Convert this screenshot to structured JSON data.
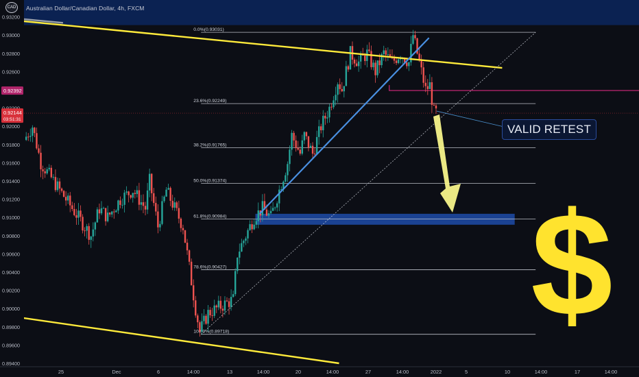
{
  "header": {
    "currency_badge": "CAD",
    "symbol_title": "Australian Dollar/Canadian Dollar, 4h, FXCM"
  },
  "annotations": {
    "valid_retest": "VALID RETEST",
    "dollar_sign": "$"
  },
  "colors": {
    "background": "#0c0e15",
    "bull_candle": "#26a69a",
    "bear_candle": "#ef5350",
    "trendline_yellow": "#ffeb3b",
    "trendline_blue": "#4a90e2",
    "resistance_zone": "#0b2252",
    "target_zone": "#1e4ba8",
    "pink_level": "#b0246a",
    "arrow": "#f7f48a",
    "dollar": "#ffe32e"
  },
  "chart_data": {
    "type": "candlestick",
    "title": "",
    "xlabel": "",
    "ylabel": "",
    "ylim": [
      0.894,
      0.934
    ],
    "y_ticks": [
      0.932,
      0.93,
      0.928,
      0.926,
      0.922,
      0.92,
      0.918,
      0.916,
      0.914,
      0.912,
      0.91,
      0.908,
      0.906,
      0.904,
      0.902,
      0.9,
      0.898,
      0.896,
      0.894
    ],
    "y_tick_labels": [
      "0.93200",
      "0.93000",
      "0.92800",
      "0.92600",
      "0.92200",
      "0.92000",
      "0.91800",
      "0.91600",
      "0.91400",
      "0.91200",
      "0.91000",
      "0.90800",
      "0.90600",
      "0.90400",
      "0.90200",
      "0.90000",
      "0.89800",
      "0.89600",
      "0.89400"
    ],
    "x_tick_labels": [
      "25",
      "Dec",
      "6",
      "14:00",
      "13",
      "14:00",
      "20",
      "14:00",
      "27",
      "14:00",
      "2022",
      "5",
      "10",
      "14:00",
      "17",
      "14:00"
    ],
    "price_markers": [
      {
        "value": 0.92392,
        "label": "0.92392",
        "color": "#b0246a"
      },
      {
        "value": 0.92144,
        "label": "0.92144",
        "sublabel": "03:51:31",
        "color": "#d8313b"
      }
    ],
    "fib_levels": [
      {
        "ratio": "0.0%",
        "value": 0.93031,
        "label": "0.0%(0.93031)"
      },
      {
        "ratio": "23.6%",
        "value": 0.92249,
        "label": "23.6%(0.92249)"
      },
      {
        "ratio": "38.2%",
        "value": 0.91765,
        "label": "38.2%(0.91765)"
      },
      {
        "ratio": "50.0%",
        "value": 0.91374,
        "label": "50.0%(0.91374)"
      },
      {
        "ratio": "61.8%",
        "value": 0.90984,
        "label": "61.8%(0.90984)"
      },
      {
        "ratio": "78.6%",
        "value": 0.90427,
        "label": "78.6%(0.90427)"
      },
      {
        "ratio": "100.0%",
        "value": 0.89718,
        "label": "100.0%(0.89718)"
      }
    ],
    "price_path": [
      [
        0,
        0.9185
      ],
      [
        4,
        0.92
      ],
      [
        8,
        0.916
      ],
      [
        14,
        0.914
      ],
      [
        20,
        0.912
      ],
      [
        26,
        0.91
      ],
      [
        32,
        0.908
      ],
      [
        36,
        0.911
      ],
      [
        40,
        0.91
      ],
      [
        46,
        0.912
      ],
      [
        52,
        0.913
      ],
      [
        58,
        0.911
      ],
      [
        60,
        0.914
      ],
      [
        64,
        0.909
      ],
      [
        68,
        0.913
      ],
      [
        72,
        0.911
      ],
      [
        76,
        0.909
      ],
      [
        78,
        0.906
      ],
      [
        80,
        0.903
      ],
      [
        82,
        0.9
      ],
      [
        84,
        0.8975
      ],
      [
        88,
        0.8995
      ],
      [
        92,
        0.9
      ],
      [
        96,
        0.9005
      ],
      [
        100,
        0.901
      ],
      [
        102,
        0.906
      ],
      [
        106,
        0.908
      ],
      [
        110,
        0.91
      ],
      [
        114,
        0.911
      ],
      [
        118,
        0.91
      ],
      [
        122,
        0.913
      ],
      [
        126,
        0.916
      ],
      [
        128,
        0.919
      ],
      [
        132,
        0.917
      ],
      [
        134,
        0.919
      ],
      [
        138,
        0.917
      ],
      [
        142,
        0.92
      ],
      [
        146,
        0.922
      ],
      [
        150,
        0.925
      ],
      [
        152,
        0.924
      ],
      [
        156,
        0.928
      ],
      [
        160,
        0.927
      ],
      [
        164,
        0.928
      ],
      [
        168,
        0.926
      ],
      [
        172,
        0.928
      ],
      [
        176,
        0.927
      ],
      [
        180,
        0.928
      ],
      [
        184,
        0.927
      ],
      [
        186,
        0.93
      ],
      [
        188,
        0.928
      ],
      [
        192,
        0.924
      ],
      [
        194,
        0.9245
      ],
      [
        196,
        0.9215
      ]
    ],
    "trendlines": [
      {
        "name": "",
        "color": "#ffeb3b",
        "start": [
          -2,
          0.93155
        ],
        "end": [
          228,
          0.9264
        ]
      },
      {
        "name": "",
        "color": "#ffeb3b",
        "start": [
          -2,
          0.899
        ],
        "end": [
          150,
          0.894
        ]
      },
      {
        "name": "",
        "color": "#4a90e2",
        "start": [
          112,
          0.9104
        ],
        "end": [
          193,
          0.9297
        ]
      },
      {
        "name": "",
        "color": "#d0d4dc",
        "dashed": true,
        "start": [
          84,
          0.89718
        ],
        "end": [
          244,
          0.93031
        ]
      }
    ],
    "zones": [
      {
        "name": "",
        "color": "#0b2252",
        "bottom": 0.9311,
        "top": 0.934,
        "x_start": -2,
        "x_end": 300
      },
      {
        "name": "",
        "color": "#1e4ba8",
        "bottom": 0.9092,
        "top": 0.9104,
        "x_start": 110,
        "x_end": 234
      }
    ],
    "pink_line": {
      "value": 0.92392,
      "x_start": 174,
      "x_end": 300
    },
    "bars_per_x_tick_gap": 17.5,
    "grid": false,
    "legend": "none"
  }
}
